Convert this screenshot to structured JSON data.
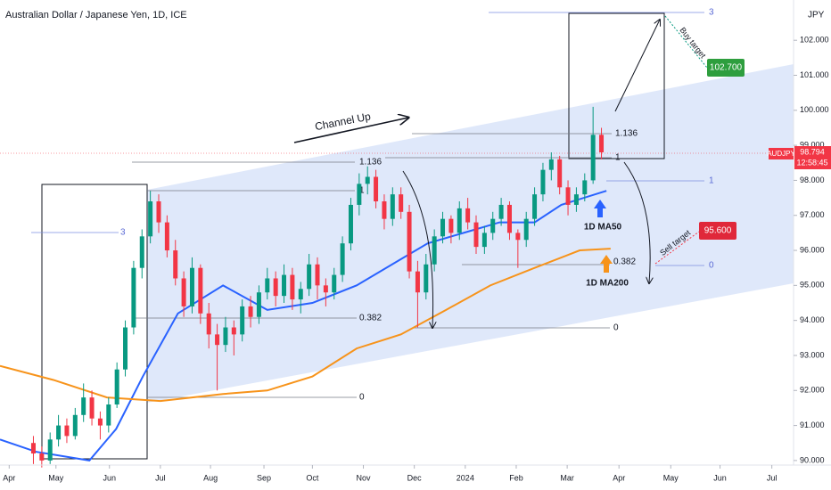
{
  "chart_data": {
    "type": "candlestick",
    "title": "Australian Dollar / Japanese Yen, 1D, ICE",
    "currency": "JPY",
    "symbol": "AUDJPY",
    "last_price": "98.794",
    "countdown": "12:58:45",
    "xlim": [
      -2,
      93
    ],
    "ylim": [
      89.87,
      103.15
    ],
    "xticks": [
      {
        "value": -0.9,
        "label": "Apr"
      },
      {
        "value": 4.7,
        "label": "May"
      },
      {
        "value": 11.1,
        "label": "Jun"
      },
      {
        "value": 17.2,
        "label": "Jul"
      },
      {
        "value": 23.2,
        "label": "Aug"
      },
      {
        "value": 29.6,
        "label": "Sep"
      },
      {
        "value": 35.4,
        "label": "Oct"
      },
      {
        "value": 41.5,
        "label": "Nov"
      },
      {
        "value": 47.6,
        "label": "Dec"
      },
      {
        "value": 53.7,
        "label": "2024"
      },
      {
        "value": 59.8,
        "label": "Feb"
      },
      {
        "value": 65.9,
        "label": "Mar"
      },
      {
        "value": 72.1,
        "label": "Apr"
      },
      {
        "value": 78.3,
        "label": "May"
      },
      {
        "value": 84.2,
        "label": "Jun"
      },
      {
        "value": 90.4,
        "label": "Jul"
      }
    ],
    "yticks": [
      {
        "value": 90,
        "label": "90.000"
      },
      {
        "value": 91,
        "label": "91.000"
      },
      {
        "value": 92,
        "label": "92.000"
      },
      {
        "value": 93,
        "label": "93.000"
      },
      {
        "value": 94,
        "label": "94.000"
      },
      {
        "value": 95,
        "label": "95.000"
      },
      {
        "value": 96,
        "label": "96.000"
      },
      {
        "value": 97,
        "label": "97.000"
      },
      {
        "value": 98,
        "label": "98.000"
      },
      {
        "value": 99,
        "label": "99.000"
      },
      {
        "value": 100,
        "label": "100.000"
      },
      {
        "value": 101,
        "label": "101.000"
      },
      {
        "value": 102,
        "label": "102.000"
      }
    ],
    "up_color": "#089981",
    "down_color": "#f23645",
    "x": [
      2,
      3,
      4,
      5,
      6,
      7,
      8,
      9,
      10,
      11,
      12,
      13,
      14,
      15,
      16,
      17,
      18,
      19,
      20,
      21,
      22,
      23,
      24,
      25,
      26,
      27,
      28,
      29,
      30,
      31,
      32,
      33,
      34,
      35,
      36,
      37,
      38,
      39,
      40,
      41,
      42,
      43,
      44,
      45,
      46,
      47,
      48,
      49,
      50,
      51,
      52,
      53,
      54,
      55,
      56,
      57,
      58,
      59,
      60,
      61,
      62,
      63,
      64,
      65,
      66,
      67,
      68,
      69,
      70
    ],
    "ohlc": [
      [
        90.5,
        90.7,
        89.9,
        90.2
      ],
      [
        90.2,
        90.4,
        89.8,
        90.0
      ],
      [
        90.0,
        90.8,
        89.9,
        90.6
      ],
      [
        90.6,
        91.3,
        90.4,
        91.0
      ],
      [
        91.0,
        91.2,
        90.5,
        90.7
      ],
      [
        90.7,
        91.5,
        90.6,
        91.3
      ],
      [
        91.3,
        92.2,
        91.1,
        91.8
      ],
      [
        91.8,
        92.0,
        91.0,
        91.2
      ],
      [
        91.2,
        91.4,
        90.6,
        91.0
      ],
      [
        91.0,
        91.8,
        90.8,
        91.6
      ],
      [
        91.6,
        92.8,
        91.5,
        92.6
      ],
      [
        92.6,
        94.0,
        92.4,
        93.8
      ],
      [
        93.8,
        95.7,
        93.6,
        95.5
      ],
      [
        95.5,
        96.6,
        95.2,
        96.4
      ],
      [
        96.4,
        97.7,
        96.2,
        97.4
      ],
      [
        97.4,
        97.6,
        96.5,
        96.8
      ],
      [
        96.8,
        97.0,
        95.8,
        96.0
      ],
      [
        96.0,
        96.3,
        95.0,
        95.2
      ],
      [
        95.2,
        95.4,
        94.1,
        94.4
      ],
      [
        94.4,
        95.8,
        94.2,
        95.5
      ],
      [
        95.5,
        95.6,
        93.9,
        94.2
      ],
      [
        94.2,
        94.5,
        93.2,
        93.6
      ],
      [
        93.6,
        93.9,
        92.0,
        93.3
      ],
      [
        93.3,
        94.1,
        93.1,
        93.8
      ],
      [
        93.8,
        94.0,
        93.0,
        93.6
      ],
      [
        93.6,
        94.6,
        93.4,
        94.4
      ],
      [
        94.4,
        94.7,
        93.8,
        94.1
      ],
      [
        94.1,
        95.0,
        93.9,
        94.8
      ],
      [
        94.8,
        95.5,
        94.6,
        95.2
      ],
      [
        95.2,
        95.4,
        94.4,
        94.7
      ],
      [
        94.7,
        95.6,
        94.5,
        95.3
      ],
      [
        95.3,
        95.5,
        94.3,
        94.6
      ],
      [
        94.6,
        95.1,
        94.2,
        94.9
      ],
      [
        94.9,
        95.9,
        94.7,
        95.6
      ],
      [
        95.6,
        95.8,
        94.6,
        95.0
      ],
      [
        95.0,
        95.2,
        94.4,
        94.8
      ],
      [
        94.8,
        95.5,
        94.6,
        95.3
      ],
      [
        95.3,
        96.4,
        95.1,
        96.2
      ],
      [
        96.2,
        97.5,
        96.0,
        97.3
      ],
      [
        97.3,
        98.2,
        97.0,
        97.9
      ],
      [
        97.9,
        98.4,
        97.6,
        98.1
      ],
      [
        98.1,
        98.3,
        97.2,
        97.4
      ],
      [
        97.4,
        97.6,
        96.6,
        96.9
      ],
      [
        96.9,
        97.8,
        96.7,
        97.6
      ],
      [
        97.6,
        97.8,
        96.9,
        97.1
      ],
      [
        97.1,
        97.3,
        95.2,
        95.4
      ],
      [
        95.4,
        95.7,
        93.8,
        94.8
      ],
      [
        94.8,
        95.9,
        94.6,
        95.6
      ],
      [
        95.6,
        96.6,
        95.4,
        96.4
      ],
      [
        96.4,
        97.1,
        96.2,
        96.9
      ],
      [
        96.9,
        97.0,
        96.2,
        96.5
      ],
      [
        96.5,
        97.4,
        96.3,
        97.2
      ],
      [
        97.2,
        97.5,
        96.6,
        96.8
      ],
      [
        96.8,
        97.0,
        95.9,
        96.1
      ],
      [
        96.1,
        96.7,
        95.9,
        96.5
      ],
      [
        96.5,
        97.1,
        96.3,
        96.9
      ],
      [
        96.9,
        97.5,
        96.7,
        97.3
      ],
      [
        97.3,
        97.4,
        96.3,
        96.5
      ],
      [
        96.5,
        96.6,
        95.5,
        96.3
      ],
      [
        96.3,
        97.1,
        96.1,
        96.9
      ],
      [
        96.9,
        97.8,
        96.7,
        97.6
      ],
      [
        97.6,
        98.5,
        97.4,
        98.3
      ],
      [
        98.3,
        98.8,
        98.0,
        98.6
      ],
      [
        98.6,
        98.7,
        97.6,
        97.8
      ],
      [
        97.8,
        98.0,
        97.0,
        97.3
      ],
      [
        97.3,
        97.8,
        97.1,
        97.6
      ],
      [
        97.6,
        98.2,
        97.4,
        98.0
      ],
      [
        98.0,
        100.1,
        97.9,
        99.3
      ],
      [
        99.3,
        99.5,
        98.6,
        98.8
      ]
    ],
    "lines": [
      {
        "name": "1D MA50",
        "color": "#2962ff",
        "x": [
          -2,
          2.3,
          8.7,
          11.9,
          15.1,
          19.3,
          24.7,
          30.0,
          35.4,
          40.7,
          46.0,
          49.2,
          53.5,
          57.8,
          62.0,
          65.2,
          70.6
        ],
        "values": [
          90.6,
          90.25,
          90.0,
          90.9,
          92.4,
          94.2,
          95.0,
          94.3,
          94.5,
          95.0,
          95.75,
          96.2,
          96.5,
          96.8,
          96.8,
          97.3,
          97.7
        ]
      },
      {
        "name": "1D MA200",
        "color": "#f7931a",
        "x": [
          -2,
          4.4,
          10.8,
          17.2,
          24.7,
          30.0,
          35.4,
          40.7,
          46.0,
          51.4,
          56.7,
          62.0,
          67.4,
          71.1
        ],
        "values": [
          92.7,
          92.3,
          91.8,
          91.7,
          91.9,
          92.0,
          92.4,
          93.2,
          93.6,
          94.3,
          95.0,
          95.5,
          96.0,
          96.05
        ]
      }
    ],
    "annotations": {
      "channel": "Channel Up",
      "buy": "Buy target",
      "sell": "Sell target",
      "buy_price": "102.700",
      "sell_price": "95.600"
    },
    "fib_left": {
      "level_3": "3",
      "level_1136": "1.136",
      "level_1": "1",
      "level_0382": "0.382",
      "level_0": "0"
    },
    "fib_right": {
      "level_1136": "1.136",
      "level_1": "1",
      "level_0382": "0.382",
      "level_0": "0"
    },
    "fib_target": {
      "level_3": "3",
      "level_1": "1",
      "level_0": "0"
    }
  }
}
